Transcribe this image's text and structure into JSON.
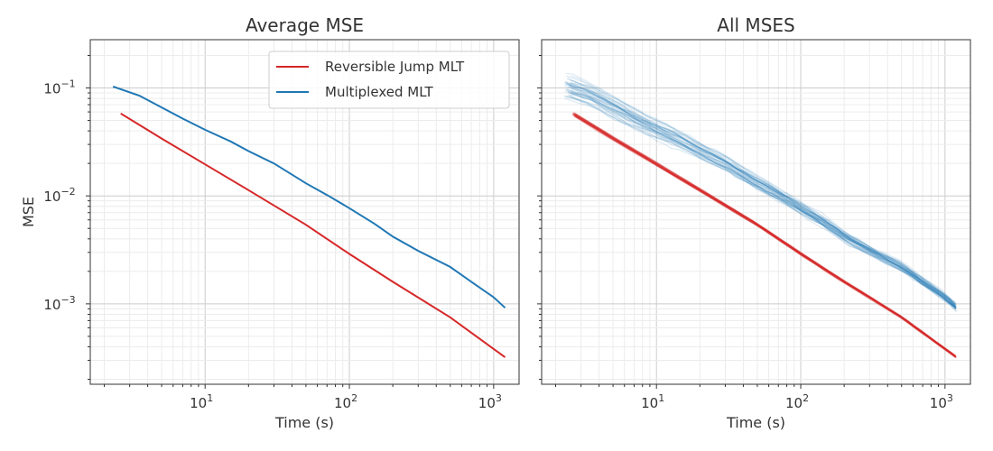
{
  "chart_data": [
    {
      "type": "line",
      "title": "Average MSE",
      "xlabel": "Time (s)",
      "ylabel": "MSE",
      "xscale": "log",
      "yscale": "log",
      "xlim": [
        1.6,
        1500
      ],
      "ylim": [
        0.00018,
        0.28
      ],
      "x_ticks": [
        "10^1",
        "10^2",
        "10^3"
      ],
      "y_ticks": [
        "10^-1",
        "10^-2",
        "10^-3"
      ],
      "grid": true,
      "legend": "top-right",
      "series": [
        {
          "name": "Reversible Jump MLT",
          "color": "#d62728",
          "x": [
            2.6,
            5,
            10,
            20,
            50,
            100,
            200,
            500,
            1200
          ],
          "y": [
            0.058,
            0.034,
            0.0196,
            0.0113,
            0.0054,
            0.0029,
            0.0016,
            0.00075,
            0.00032
          ]
        },
        {
          "name": "Multiplexed MLT",
          "color": "#1f77b4",
          "x": [
            2.3,
            3.5,
            5,
            7,
            10,
            15,
            20,
            30,
            50,
            70,
            100,
            150,
            200,
            300,
            500,
            700,
            1000,
            1200
          ],
          "y": [
            0.103,
            0.085,
            0.066,
            0.052,
            0.041,
            0.032,
            0.026,
            0.02,
            0.0131,
            0.0102,
            0.0077,
            0.0055,
            0.0042,
            0.0031,
            0.0022,
            0.0016,
            0.00115,
            0.00092
          ]
        }
      ]
    },
    {
      "type": "line",
      "title": "All MSES",
      "xlabel": "Time (s)",
      "ylabel": "",
      "xscale": "log",
      "yscale": "log",
      "xlim": [
        1.6,
        1500
      ],
      "ylim": [
        0.00018,
        0.28
      ],
      "x_ticks": [
        "10^1",
        "10^2",
        "10^3"
      ],
      "grid": true,
      "series": [
        {
          "name": "",
          "color": "#d62728",
          "opacity": 0.15,
          "x": [
            2.6,
            5,
            10,
            20,
            50,
            100,
            200,
            500,
            1200
          ],
          "y": [
            0.058,
            0.034,
            0.0196,
            0.0113,
            0.0054,
            0.0029,
            0.0016,
            0.00075,
            0.00032
          ]
        },
        {
          "name": "",
          "color": "#1f77b4",
          "opacity": 0.15,
          "x": [
            2.3,
            3.5,
            5,
            7,
            10,
            15,
            20,
            30,
            50,
            70,
            100,
            150,
            200,
            300,
            500,
            700,
            1000,
            1200
          ],
          "y": [
            0.103,
            0.085,
            0.066,
            0.052,
            0.041,
            0.032,
            0.026,
            0.02,
            0.0131,
            0.0102,
            0.0077,
            0.0055,
            0.0042,
            0.0031,
            0.0022,
            0.0016,
            0.00115,
            0.00092
          ]
        }
      ]
    }
  ]
}
